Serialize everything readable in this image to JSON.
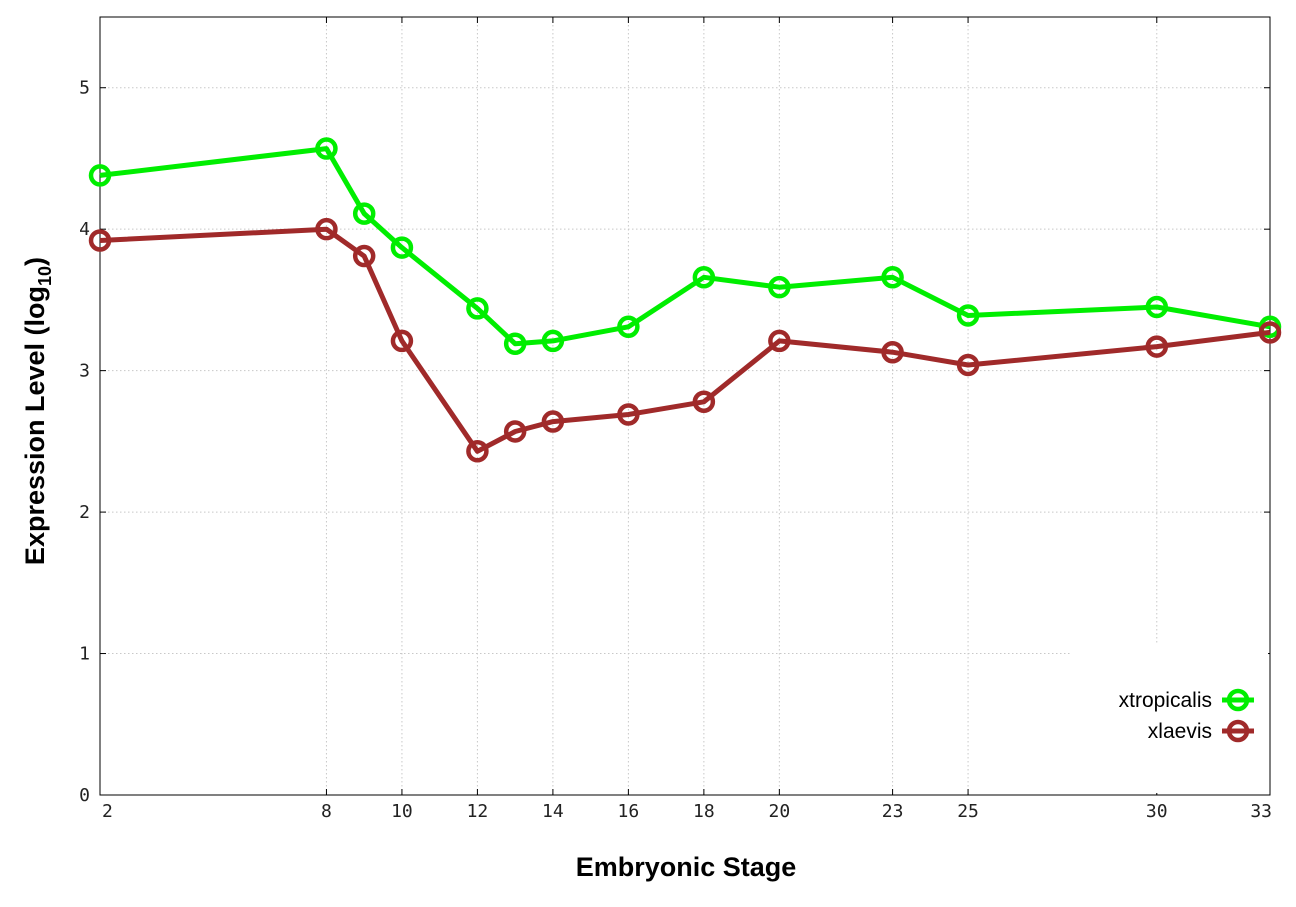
{
  "chart_data": {
    "type": "line",
    "xlabel": "Embryonic Stage",
    "ylabel_main": "Expression Level (log",
    "ylabel_sub": "10",
    "ylabel_close": ")",
    "x_ticks": [
      2,
      8,
      10,
      12,
      14,
      16,
      18,
      20,
      23,
      25,
      30,
      33
    ],
    "y_ticks": [
      0,
      1,
      2,
      3,
      4,
      5
    ],
    "xlim": [
      2,
      33
    ],
    "ylim": [
      0,
      5.5
    ],
    "grid": true,
    "legend_position": "bottom-right",
    "x": [
      2,
      8,
      9,
      10,
      12,
      13,
      14,
      16,
      18,
      20,
      23,
      25,
      30,
      33
    ],
    "series": [
      {
        "name": "xtropicalis",
        "color": "#00ee00",
        "values": [
          4.38,
          4.57,
          4.11,
          3.87,
          3.44,
          3.19,
          3.21,
          3.31,
          3.66,
          3.59,
          3.66,
          3.39,
          3.45,
          3.31
        ]
      },
      {
        "name": "xlaevis",
        "color": "#a02a2a",
        "values": [
          3.92,
          4.0,
          3.81,
          3.21,
          2.43,
          2.57,
          2.64,
          2.69,
          2.78,
          3.21,
          3.13,
          3.04,
          3.17,
          3.27
        ]
      }
    ]
  }
}
